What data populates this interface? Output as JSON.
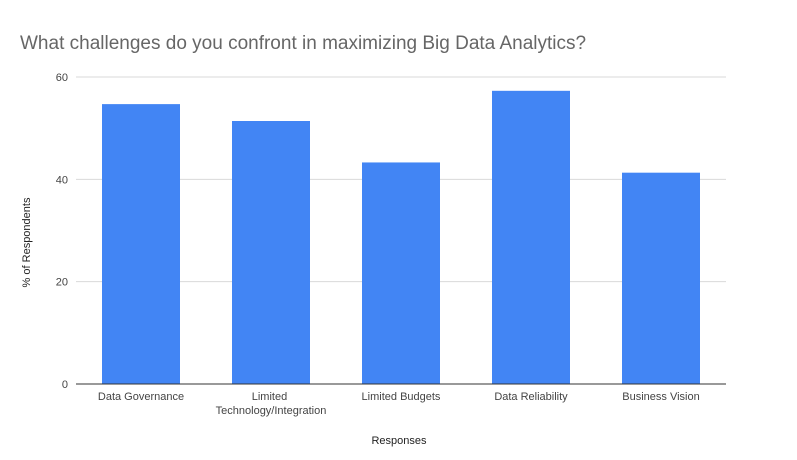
{
  "chart_data": {
    "type": "bar",
    "title": "What challenges do you confront in maximizing Big Data Analytics?",
    "xlabel": "Responses",
    "ylabel": "% of Respondents",
    "categories": [
      [
        "Data Governance"
      ],
      [
        "Limited",
        "Technology/Integration"
      ],
      [
        "Limited Budgets"
      ],
      [
        "Data Reliability"
      ],
      [
        "Business Vision"
      ]
    ],
    "values": [
      54.7,
      51.4,
      43.3,
      57.3,
      41.3
    ],
    "ylim": [
      0,
      60
    ],
    "yticks": [
      "0",
      "20",
      "40",
      "60"
    ],
    "grid": true,
    "legend": "none",
    "bar_color": "#4285f4",
    "grid_color": "#d9d9d9",
    "axis_color": "#333333",
    "label_color": "#444444"
  }
}
